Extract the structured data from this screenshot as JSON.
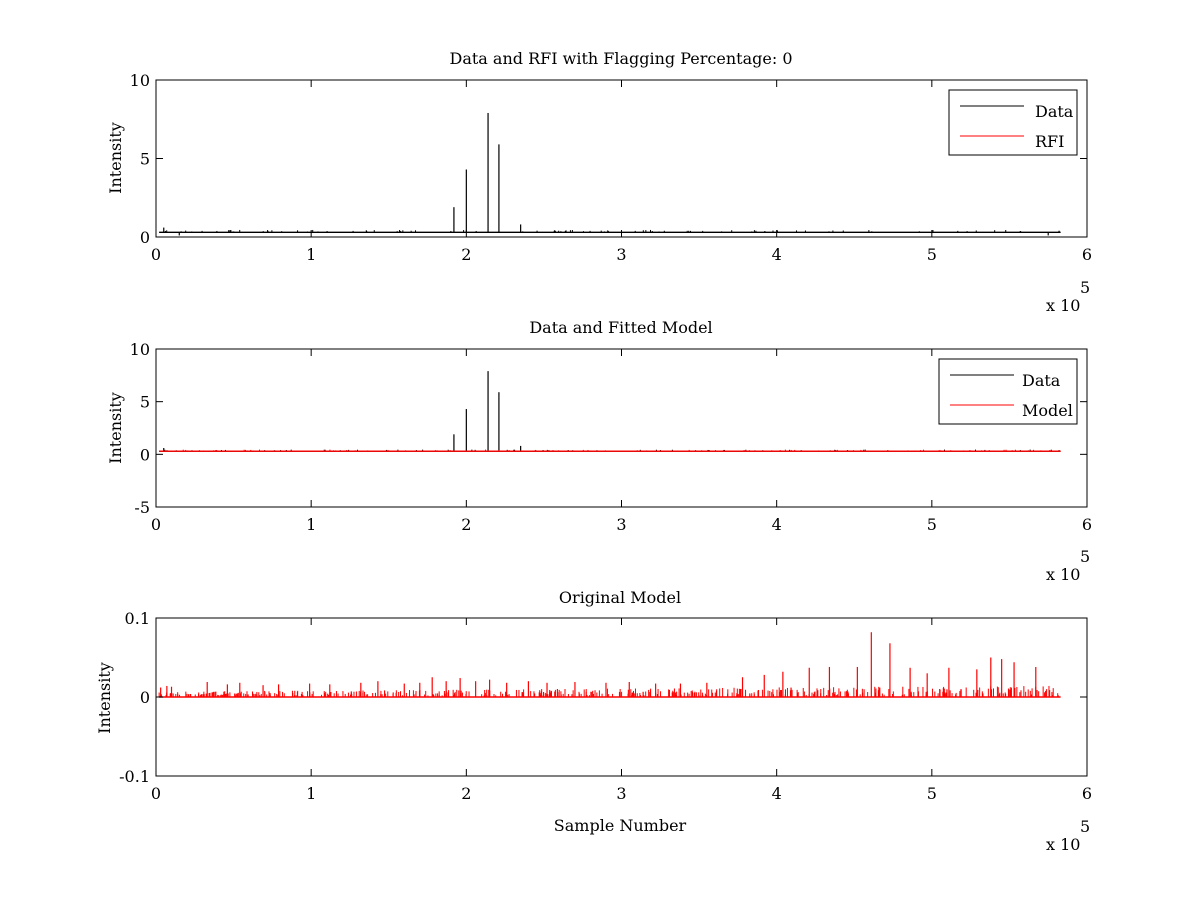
{
  "chart_data": [
    {
      "type": "line",
      "title": "Data and RFI with Flagging Percentage: 0",
      "xlabel": "",
      "ylabel": "Intensity",
      "xlim": [
        0,
        600000
      ],
      "ylim": [
        0,
        10
      ],
      "xticks": [
        0,
        1,
        2,
        3,
        4,
        5,
        6
      ],
      "yticks": [
        0,
        5,
        10
      ],
      "x_multiplier": "x 10",
      "x_exponent": "5",
      "legend_position": "top-right",
      "grid": false,
      "series": [
        {
          "name": "Data",
          "color": "#000000",
          "baseline": 0.3,
          "spikes": [
            [
              5000,
              0.6
            ],
            [
              15000,
              0.1
            ],
            [
              23000,
              0.35
            ],
            [
              192000,
              1.9
            ],
            [
              200000,
              4.3
            ],
            [
              214000,
              7.9
            ],
            [
              221000,
              5.9
            ],
            [
              235000,
              0.8
            ],
            [
              575000,
              0.1
            ],
            [
              582000,
              0.4
            ]
          ]
        },
        {
          "name": "RFI",
          "color": "#ff0000",
          "values": []
        }
      ]
    },
    {
      "type": "line",
      "title": "Data and Fitted Model",
      "xlabel": "",
      "ylabel": "Intensity",
      "xlim": [
        0,
        600000
      ],
      "ylim": [
        -5,
        10
      ],
      "xticks": [
        0,
        1,
        2,
        3,
        4,
        5,
        6
      ],
      "yticks": [
        -5,
        0,
        5,
        10
      ],
      "x_multiplier": "x 10",
      "x_exponent": "5",
      "legend_position": "top-right",
      "grid": false,
      "series": [
        {
          "name": "Data",
          "color": "#000000",
          "baseline": 0.3,
          "spikes": [
            [
              5000,
              0.6
            ],
            [
              192000,
              1.9
            ],
            [
              200000,
              4.3
            ],
            [
              214000,
              7.9
            ],
            [
              221000,
              5.9
            ],
            [
              235000,
              0.8
            ],
            [
              582000,
              0.4
            ]
          ]
        },
        {
          "name": "Model",
          "color": "#ff0000",
          "baseline": 0.3,
          "spikes": []
        }
      ]
    },
    {
      "type": "line",
      "title": "Original Model",
      "xlabel": "Sample Number",
      "ylabel": "Intensity",
      "xlim": [
        0,
        600000
      ],
      "ylim": [
        -0.1,
        0.1
      ],
      "xticks": [
        0,
        1,
        2,
        3,
        4,
        5,
        6
      ],
      "yticks": [
        -0.1,
        0,
        0.1
      ],
      "x_multiplier": "x 10",
      "x_exponent": "5",
      "grid": false,
      "series": [
        {
          "name": "",
          "color": "#ff0000",
          "baseline": 0,
          "spikes": [
            [
              3000,
              0.012
            ],
            [
              7000,
              0.014
            ],
            [
              10000,
              0.013
            ],
            [
              33000,
              0.019
            ],
            [
              46000,
              0.016
            ],
            [
              54000,
              0.018
            ],
            [
              69000,
              0.015
            ],
            [
              79000,
              0.016
            ],
            [
              99000,
              0.017
            ],
            [
              112000,
              0.016
            ],
            [
              132000,
              0.018
            ],
            [
              143000,
              0.02
            ],
            [
              160000,
              0.017
            ],
            [
              170000,
              0.018
            ],
            [
              178000,
              0.025
            ],
            [
              187000,
              0.02
            ],
            [
              196000,
              0.024
            ],
            [
              206000,
              0.02
            ],
            [
              215000,
              0.022
            ],
            [
              226000,
              0.018
            ],
            [
              240000,
              0.02
            ],
            [
              252000,
              0.018
            ],
            [
              270000,
              0.019
            ],
            [
              290000,
              0.018
            ],
            [
              305000,
              0.019
            ],
            [
              322000,
              0.017
            ],
            [
              338000,
              0.017
            ],
            [
              355000,
              0.018
            ],
            [
              378000,
              0.025
            ],
            [
              392000,
              0.028
            ],
            [
              404000,
              0.032
            ],
            [
              421000,
              0.037
            ],
            [
              434000,
              0.038
            ],
            [
              452000,
              0.038
            ],
            [
              461000,
              0.082
            ],
            [
              473000,
              0.068
            ],
            [
              486000,
              0.037
            ],
            [
              497000,
              0.03
            ],
            [
              511000,
              0.037
            ],
            [
              529000,
              0.035
            ],
            [
              538000,
              0.05
            ],
            [
              545000,
              0.048
            ],
            [
              553000,
              0.044
            ],
            [
              567000,
              0.038
            ]
          ]
        }
      ]
    }
  ]
}
